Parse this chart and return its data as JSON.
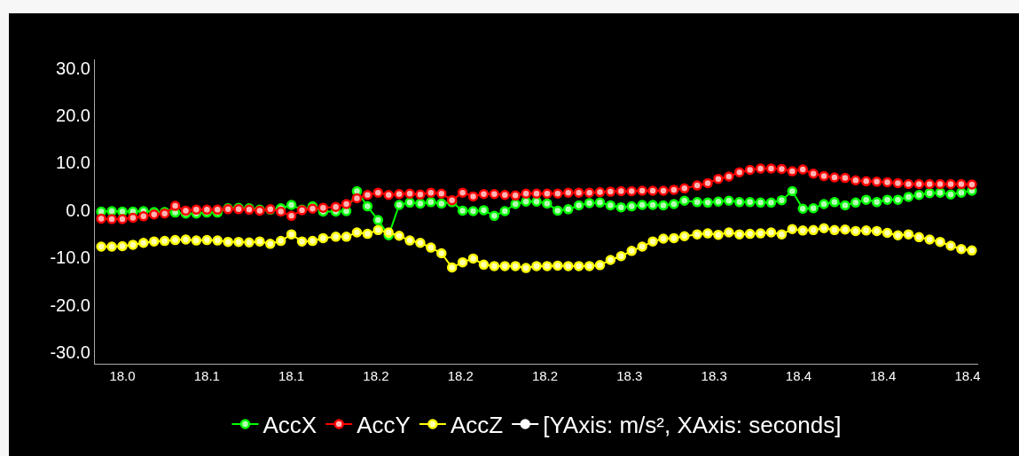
{
  "chart_data": {
    "type": "line",
    "marker": "circle",
    "line_style": "solid",
    "grid": false,
    "legend": "bottom",
    "x": [
      18.02,
      18.025,
      18.03,
      18.035,
      18.04,
      18.045,
      18.05,
      18.055,
      18.06,
      18.065,
      18.07,
      18.075,
      18.08,
      18.085,
      18.09,
      18.095,
      18.1,
      18.105,
      18.11,
      18.115,
      18.12,
      18.125,
      18.131,
      18.136,
      18.141,
      18.146,
      18.151,
      18.156,
      18.161,
      18.166,
      18.171,
      18.176,
      18.181,
      18.186,
      18.191,
      18.196,
      18.201,
      18.206,
      18.211,
      18.216,
      18.221,
      18.226,
      18.231,
      18.236,
      18.241,
      18.246,
      18.251,
      18.256,
      18.261,
      18.266,
      18.271,
      18.276,
      18.281,
      18.286,
      18.291,
      18.296,
      18.302,
      18.307,
      18.312,
      18.317,
      18.322,
      18.327,
      18.332,
      18.337,
      18.342,
      18.347,
      18.352,
      18.357,
      18.362,
      18.367,
      18.372,
      18.377,
      18.382,
      18.387,
      18.392,
      18.397,
      18.402,
      18.407,
      18.412,
      18.417,
      18.422,
      18.427,
      18.432
    ],
    "xlim": [
      18.017,
      18.435
    ],
    "xticks": [
      {
        "value": 18.03,
        "label": "18.0"
      },
      {
        "value": 18.07,
        "label": "18.1"
      },
      {
        "value": 18.11,
        "label": "18.1"
      },
      {
        "value": 18.15,
        "label": "18.2"
      },
      {
        "value": 18.19,
        "label": "18.2"
      },
      {
        "value": 18.23,
        "label": "18.2"
      },
      {
        "value": 18.27,
        "label": "18.3"
      },
      {
        "value": 18.31,
        "label": "18.3"
      },
      {
        "value": 18.35,
        "label": "18.4"
      },
      {
        "value": 18.39,
        "label": "18.4"
      },
      {
        "value": 18.43,
        "label": "18.4"
      }
    ],
    "ylim": [
      -32.4,
      31.8
    ],
    "yticks": [
      {
        "value": 30,
        "label": "30.0"
      },
      {
        "value": 20,
        "label": "20.0"
      },
      {
        "value": 10,
        "label": "10.0"
      },
      {
        "value": 0,
        "label": "0.0"
      },
      {
        "value": -10,
        "label": "-10.0"
      },
      {
        "value": -20,
        "label": "-20.0"
      },
      {
        "value": -30,
        "label": "-30.0"
      }
    ],
    "series": [
      {
        "name": "AccX",
        "color": "#00ff00",
        "values": [
          -0.3,
          -0.2,
          -0.3,
          -0.3,
          -0.2,
          -0.4,
          -0.4,
          -0.5,
          -0.7,
          -0.7,
          -0.5,
          -0.5,
          0.4,
          0.5,
          0.4,
          0.1,
          0.1,
          0.4,
          1.1,
          0.1,
          0.8,
          -0.3,
          -0.3,
          -0.2,
          4.0,
          0.8,
          -2.1,
          -5.3,
          1.1,
          1.6,
          1.4,
          1.7,
          1.4,
          1.7,
          -0.1,
          -0.2,
          0.0,
          -1.2,
          -0.2,
          1.3,
          1.8,
          1.8,
          1.4,
          -0.1,
          0.2,
          1.0,
          1.5,
          1.6,
          1.0,
          0.6,
          0.8,
          1.1,
          1.1,
          1.0,
          1.3,
          2.0,
          1.7,
          1.6,
          1.8,
          2.0,
          1.7,
          1.7,
          1.6,
          1.6,
          2.1,
          4.0,
          0.3,
          0.4,
          1.3,
          1.7,
          1.0,
          1.6,
          2.2,
          1.7,
          2.2,
          2.2,
          2.8,
          3.2,
          3.6,
          3.7,
          3.3,
          3.7,
          4.1
        ]
      },
      {
        "name": "AccY",
        "color": "#ff0000",
        "values": [
          -1.8,
          -1.9,
          -1.9,
          -1.6,
          -1.3,
          -0.9,
          -0.7,
          0.9,
          -0.1,
          0.1,
          0.1,
          0.1,
          0.2,
          0.2,
          0.1,
          -0.1,
          0.2,
          -0.3,
          -1.2,
          0.0,
          0.3,
          0.5,
          0.7,
          1.3,
          2.5,
          3.2,
          3.7,
          3.2,
          3.4,
          3.5,
          3.3,
          3.7,
          3.5,
          2.1,
          3.7,
          2.9,
          3.4,
          3.4,
          3.2,
          3.1,
          3.5,
          3.5,
          3.5,
          3.5,
          3.7,
          3.7,
          3.7,
          3.8,
          3.9,
          4.0,
          4.0,
          4.1,
          4.1,
          4.1,
          4.3,
          4.6,
          5.2,
          5.7,
          6.6,
          7.1,
          8.0,
          8.5,
          8.8,
          8.8,
          8.7,
          8.2,
          8.6,
          7.7,
          7.2,
          6.9,
          6.8,
          6.3,
          6.1,
          6.0,
          5.9,
          5.7,
          5.5,
          5.5,
          5.5,
          5.5,
          5.5,
          5.5,
          5.4
        ]
      },
      {
        "name": "AccZ",
        "color": "#ffff00",
        "values": [
          -7.7,
          -7.7,
          -7.6,
          -7.3,
          -6.9,
          -6.6,
          -6.5,
          -6.3,
          -6.2,
          -6.4,
          -6.3,
          -6.4,
          -6.7,
          -6.7,
          -6.8,
          -6.6,
          -7.1,
          -6.5,
          -5.1,
          -6.6,
          -6.5,
          -5.9,
          -5.6,
          -5.6,
          -4.7,
          -5.0,
          -4.2,
          -4.7,
          -5.4,
          -6.4,
          -6.9,
          -7.9,
          -9.1,
          -12.1,
          -11.0,
          -10.2,
          -11.5,
          -11.8,
          -11.8,
          -11.8,
          -12.2,
          -11.8,
          -11.8,
          -11.7,
          -11.8,
          -11.8,
          -11.8,
          -11.6,
          -10.5,
          -9.7,
          -8.6,
          -7.7,
          -6.6,
          -6.0,
          -5.9,
          -5.5,
          -5.1,
          -4.9,
          -5.2,
          -4.7,
          -5.1,
          -5.0,
          -4.9,
          -4.7,
          -5.1,
          -4.0,
          -4.3,
          -4.2,
          -3.8,
          -4.2,
          -4.1,
          -4.4,
          -4.3,
          -4.4,
          -4.8,
          -5.3,
          -5.1,
          -5.7,
          -6.2,
          -6.7,
          -7.5,
          -8.2,
          -8.5
        ]
      },
      {
        "name": "[YAxis: m/s², XAxis: seconds]",
        "color": "#ffffff",
        "values": [
          null,
          null,
          null,
          null,
          null,
          null,
          null,
          null,
          null,
          null,
          null,
          null,
          null,
          null,
          null,
          null,
          null,
          null,
          null,
          null,
          null,
          null,
          null,
          null,
          null,
          null,
          null,
          null,
          null,
          null,
          null,
          null,
          null,
          null,
          null,
          null,
          null,
          null,
          null,
          null,
          null,
          null,
          null,
          null,
          null,
          null,
          null,
          null,
          null,
          null,
          null,
          null,
          null,
          null,
          null,
          null,
          null,
          null,
          null,
          null,
          null,
          null,
          null,
          null,
          null,
          null,
          null,
          null,
          null,
          null,
          null,
          null,
          null,
          null,
          null,
          null,
          null,
          null,
          null,
          null,
          null,
          null,
          null
        ]
      }
    ]
  }
}
